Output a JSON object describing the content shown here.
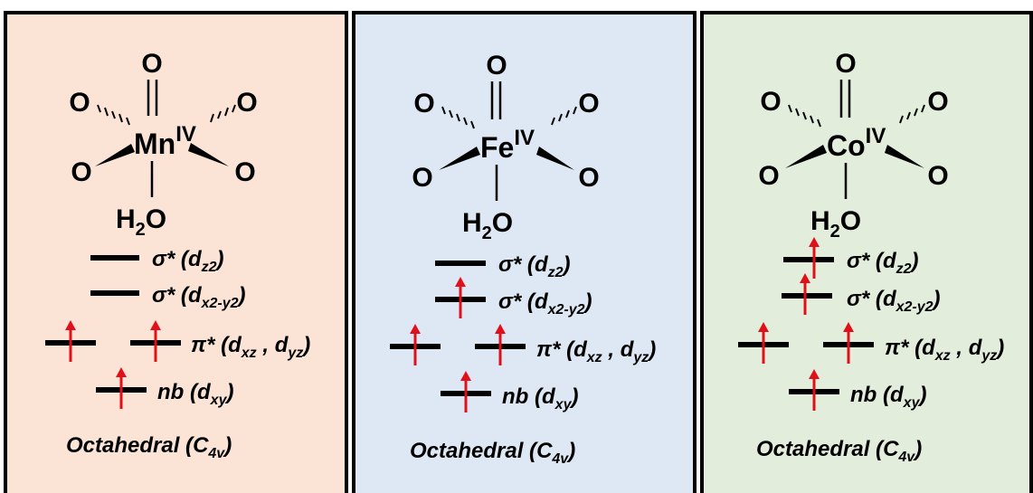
{
  "colors": {
    "border": "#000000",
    "electron": "#e0101a"
  },
  "panels": [
    {
      "background": "#fbe4d6",
      "metal": "Mn",
      "oxidation": "IV",
      "ligands": {
        "top": "O",
        "upper_left": "O",
        "upper_right": "O",
        "lower_left": "O",
        "lower_right": "O",
        "axial_bottom_main": "H",
        "axial_bottom_sub": "2",
        "axial_bottom_tail": "O"
      },
      "levels": [
        {
          "symbol": "σ*",
          "orbitals": [
            {
              "main": "d",
              "sub": "z2"
            }
          ],
          "electrons": [
            false
          ]
        },
        {
          "symbol": "σ*",
          "orbitals": [
            {
              "main": "d",
              "sub": "x2-y2"
            }
          ],
          "electrons": [
            false
          ]
        },
        {
          "symbol": "π*",
          "orbitals": [
            {
              "main": "d",
              "sub": "xz"
            },
            {
              "main": "d",
              "sub": "yz"
            }
          ],
          "electrons": [
            true,
            true
          ]
        },
        {
          "symbol": "nb",
          "orbitals": [
            {
              "main": "d",
              "sub": "xy"
            }
          ],
          "electrons": [
            true
          ]
        }
      ],
      "geometry": {
        "text": "Octahedral",
        "main": "C",
        "sub": "4v"
      }
    },
    {
      "background": "#dde8f4",
      "metal": "Fe",
      "oxidation": "IV",
      "ligands": {
        "top": "O",
        "upper_left": "O",
        "upper_right": "O",
        "lower_left": "O",
        "lower_right": "O",
        "axial_bottom_main": "H",
        "axial_bottom_sub": "2",
        "axial_bottom_tail": "O"
      },
      "levels": [
        {
          "symbol": "σ*",
          "orbitals": [
            {
              "main": "d",
              "sub": "z2"
            }
          ],
          "electrons": [
            false
          ]
        },
        {
          "symbol": "σ*",
          "orbitals": [
            {
              "main": "d",
              "sub": "x2-y2"
            }
          ],
          "electrons": [
            true
          ]
        },
        {
          "symbol": "π*",
          "orbitals": [
            {
              "main": "d",
              "sub": "xz"
            },
            {
              "main": "d",
              "sub": "yz"
            }
          ],
          "electrons": [
            true,
            true
          ]
        },
        {
          "symbol": "nb",
          "orbitals": [
            {
              "main": "d",
              "sub": "xy"
            }
          ],
          "electrons": [
            true
          ]
        }
      ],
      "geometry": {
        "text": "Octahedral",
        "main": "C",
        "sub": "4v"
      }
    },
    {
      "background": "#e2eedb",
      "metal": "Co",
      "oxidation": "IV",
      "ligands": {
        "top": "O",
        "upper_left": "O",
        "upper_right": "O",
        "lower_left": "O",
        "lower_right": "O",
        "axial_bottom_main": "H",
        "axial_bottom_sub": "2",
        "axial_bottom_tail": "O"
      },
      "levels": [
        {
          "symbol": "σ*",
          "orbitals": [
            {
              "main": "d",
              "sub": "z2"
            }
          ],
          "electrons": [
            true
          ]
        },
        {
          "symbol": "σ*",
          "orbitals": [
            {
              "main": "d",
              "sub": "x2-y2"
            }
          ],
          "electrons": [
            true
          ]
        },
        {
          "symbol": "π*",
          "orbitals": [
            {
              "main": "d",
              "sub": "xz"
            },
            {
              "main": "d",
              "sub": "yz"
            }
          ],
          "electrons": [
            true,
            true
          ]
        },
        {
          "symbol": "nb",
          "orbitals": [
            {
              "main": "d",
              "sub": "xy"
            }
          ],
          "electrons": [
            true
          ]
        }
      ],
      "geometry": {
        "text": "Octahedral",
        "main": "C",
        "sub": "4v"
      }
    }
  ]
}
